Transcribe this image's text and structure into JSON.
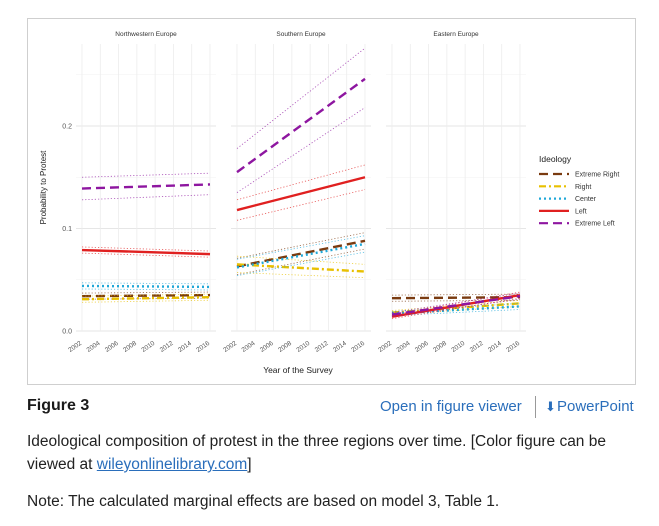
{
  "figure": {
    "label": "Figure 3",
    "open_viewer": "Open in figure viewer",
    "powerpoint": "PowerPoint",
    "caption_text": "Ideological composition of protest in the three regions over time. [Color figure can be viewed at ",
    "caption_link": "wileyonlinelibrary.com",
    "caption_end": "]",
    "note": "Note: The calculated marginal effects are based on model 3, Table 1."
  },
  "chart_data": {
    "type": "line",
    "xlabel": "Year of the Survey",
    "ylabel": "Probability to Protest",
    "x_ticks": [
      "2002",
      "2004",
      "2006",
      "2008",
      "2010",
      "2012",
      "2014",
      "2016"
    ],
    "y_ticks": [
      "0.0",
      "0.1",
      "0.2"
    ],
    "xlim": [
      2002,
      2016
    ],
    "ylim": [
      0.0,
      0.28
    ],
    "legend_title": "Ideology",
    "legend_position": "right",
    "grid": true,
    "series_styles": [
      {
        "name": "Extreme Right",
        "color": "#7a3b10",
        "dash": "long-dash"
      },
      {
        "name": "Right",
        "color": "#e8c000",
        "dash": "dash-dot"
      },
      {
        "name": "Center",
        "color": "#20a8d8",
        "dash": "dot"
      },
      {
        "name": "Left",
        "color": "#e02020",
        "dash": "solid"
      },
      {
        "name": "Extreme Left",
        "color": "#8e16a0",
        "dash": "long-dash"
      }
    ],
    "panels": [
      {
        "title": "Northwestern Europe",
        "series": [
          {
            "name": "Extreme Right",
            "start": 0.034,
            "end": 0.035,
            "lo": [
              0.031,
              0.032
            ],
            "hi": [
              0.037,
              0.038
            ]
          },
          {
            "name": "Right",
            "start": 0.031,
            "end": 0.033,
            "lo": [
              0.028,
              0.03
            ],
            "hi": [
              0.034,
              0.036
            ]
          },
          {
            "name": "Center",
            "start": 0.044,
            "end": 0.043,
            "lo": [
              0.041,
              0.04
            ],
            "hi": [
              0.047,
              0.046
            ]
          },
          {
            "name": "Left",
            "start": 0.079,
            "end": 0.075,
            "lo": [
              0.076,
              0.072
            ],
            "hi": [
              0.082,
              0.078
            ]
          },
          {
            "name": "Extreme Left",
            "start": 0.139,
            "end": 0.143,
            "lo": [
              0.128,
              0.133
            ],
            "hi": [
              0.15,
              0.154
            ]
          }
        ]
      },
      {
        "title": "Southern Europe",
        "series": [
          {
            "name": "Extreme Right",
            "start": 0.063,
            "end": 0.088,
            "lo": [
              0.055,
              0.08
            ],
            "hi": [
              0.071,
              0.096
            ]
          },
          {
            "name": "Right",
            "start": 0.065,
            "end": 0.058,
            "lo": [
              0.057,
              0.052
            ],
            "hi": [
              0.073,
              0.065
            ]
          },
          {
            "name": "Center",
            "start": 0.062,
            "end": 0.085,
            "lo": [
              0.054,
              0.077
            ],
            "hi": [
              0.07,
              0.093
            ]
          },
          {
            "name": "Left",
            "start": 0.118,
            "end": 0.15,
            "lo": [
              0.108,
              0.138
            ],
            "hi": [
              0.128,
              0.162
            ]
          },
          {
            "name": "Extreme Left",
            "start": 0.155,
            "end": 0.246,
            "lo": [
              0.135,
              0.218
            ],
            "hi": [
              0.178,
              0.276
            ]
          }
        ]
      },
      {
        "title": "Eastern Europe",
        "series": [
          {
            "name": "Extreme Right",
            "start": 0.032,
            "end": 0.033,
            "lo": [
              0.029,
              0.03
            ],
            "hi": [
              0.035,
              0.036
            ]
          },
          {
            "name": "Right",
            "start": 0.018,
            "end": 0.027,
            "lo": [
              0.016,
              0.024
            ],
            "hi": [
              0.02,
              0.03
            ]
          },
          {
            "name": "Center",
            "start": 0.017,
            "end": 0.024,
            "lo": [
              0.015,
              0.021
            ],
            "hi": [
              0.019,
              0.027
            ]
          },
          {
            "name": "Left",
            "start": 0.014,
            "end": 0.035,
            "lo": [
              0.012,
              0.032
            ],
            "hi": [
              0.016,
              0.038
            ]
          },
          {
            "name": "Extreme Left",
            "start": 0.016,
            "end": 0.034,
            "lo": [
              0.014,
              0.031
            ],
            "hi": [
              0.018,
              0.037
            ]
          }
        ]
      }
    ]
  }
}
